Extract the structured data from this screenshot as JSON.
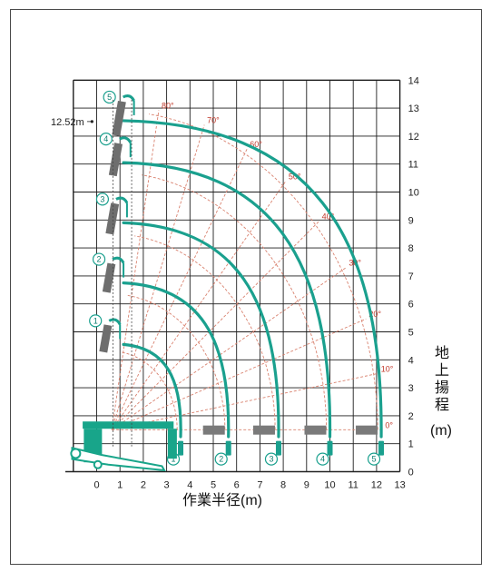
{
  "chart_data": {
    "type": "diagram",
    "x_axis": {
      "label": "作業半径(m)",
      "ticks": [
        "0",
        "1",
        "2",
        "3",
        "4",
        "5",
        "6",
        "7",
        "8",
        "9",
        "10",
        "11",
        "12",
        "13"
      ],
      "lim": [
        -1,
        13
      ]
    },
    "y_axis": {
      "label_chars": [
        "地",
        "上",
        "揚",
        "程"
      ],
      "unit": "(m)",
      "ticks": [
        "0",
        "1",
        "2",
        "3",
        "4",
        "5",
        "6",
        "7",
        "8",
        "9",
        "10",
        "11",
        "12",
        "13",
        "14"
      ],
      "lim": [
        0,
        14
      ]
    },
    "boom_pivot": [
      0.65,
      1.5
    ],
    "angle_labels": [
      "0°",
      "10°",
      "20°",
      "30°",
      "40°",
      "50°",
      "60°",
      "70°",
      "80°"
    ],
    "angles_deg": [
      0,
      10,
      20,
      30,
      40,
      50,
      60,
      70,
      80
    ],
    "stage_labels": [
      "1",
      "2",
      "3",
      "4",
      "5"
    ],
    "stage_radii": [
      2.8,
      4.85,
      7.0,
      9.2,
      11.4
    ],
    "stage_top_heights": [
      5.2,
      7.4,
      9.55,
      11.7,
      13.2
    ],
    "max_height_label": "12.52m",
    "max_height_value": 12.52,
    "colors": {
      "reach": "#1aa08e",
      "angle": "#d9826f",
      "grid": "#1e1e1e",
      "truck": "#18a58a"
    }
  }
}
